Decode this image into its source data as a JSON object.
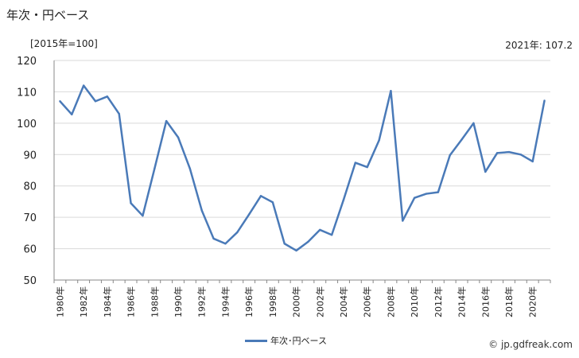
{
  "title": "年次・円ベース",
  "unit": "[2015年=100]",
  "latest": "2021年: 107.2",
  "legend_label": "年次･円ベース",
  "credit": "© jp.gdfreak.com",
  "colors": {
    "series": "#4a7ab8",
    "grid": "#d9d9d9",
    "axis": "#888888"
  },
  "chart_data": {
    "type": "line",
    "x": [
      1980,
      1981,
      1982,
      1983,
      1984,
      1985,
      1986,
      1987,
      1988,
      1989,
      1990,
      1991,
      1992,
      1993,
      1994,
      1995,
      1996,
      1997,
      1998,
      1999,
      2000,
      2001,
      2002,
      2003,
      2004,
      2005,
      2006,
      2007,
      2008,
      2009,
      2010,
      2011,
      2012,
      2013,
      2014,
      2015,
      2016,
      2017,
      2018,
      2019,
      2020,
      2021
    ],
    "x_tick_labels": [
      "1980年",
      "1982年",
      "1984年",
      "1986年",
      "1988年",
      "1990年",
      "1992年",
      "1994年",
      "1996年",
      "1998年",
      "2000年",
      "2002年",
      "2004年",
      "2006年",
      "2008年",
      "2010年",
      "2012年",
      "2014年",
      "2016年",
      "2018年",
      "2020年"
    ],
    "series": [
      {
        "name": "年次･円ベース",
        "values": [
          107.0,
          102.8,
          112.0,
          107.0,
          108.5,
          103.0,
          74.5,
          70.5,
          85.5,
          100.7,
          95.5,
          85.5,
          72.2,
          63.2,
          61.6,
          65.2,
          70.9,
          76.8,
          74.8,
          61.6,
          59.4,
          62.2,
          66.0,
          64.4,
          75.6,
          87.4,
          86.0,
          94.5,
          110.3,
          68.9,
          76.2,
          77.5,
          78.0,
          89.8,
          94.8,
          100.0,
          84.5,
          90.5,
          90.8,
          90.0,
          87.8,
          107.2
        ]
      }
    ],
    "yticks": [
      50,
      60,
      70,
      80,
      90,
      100,
      110,
      120
    ],
    "ylim": [
      50,
      120
    ],
    "grid": true,
    "legend_position": "bottom"
  }
}
